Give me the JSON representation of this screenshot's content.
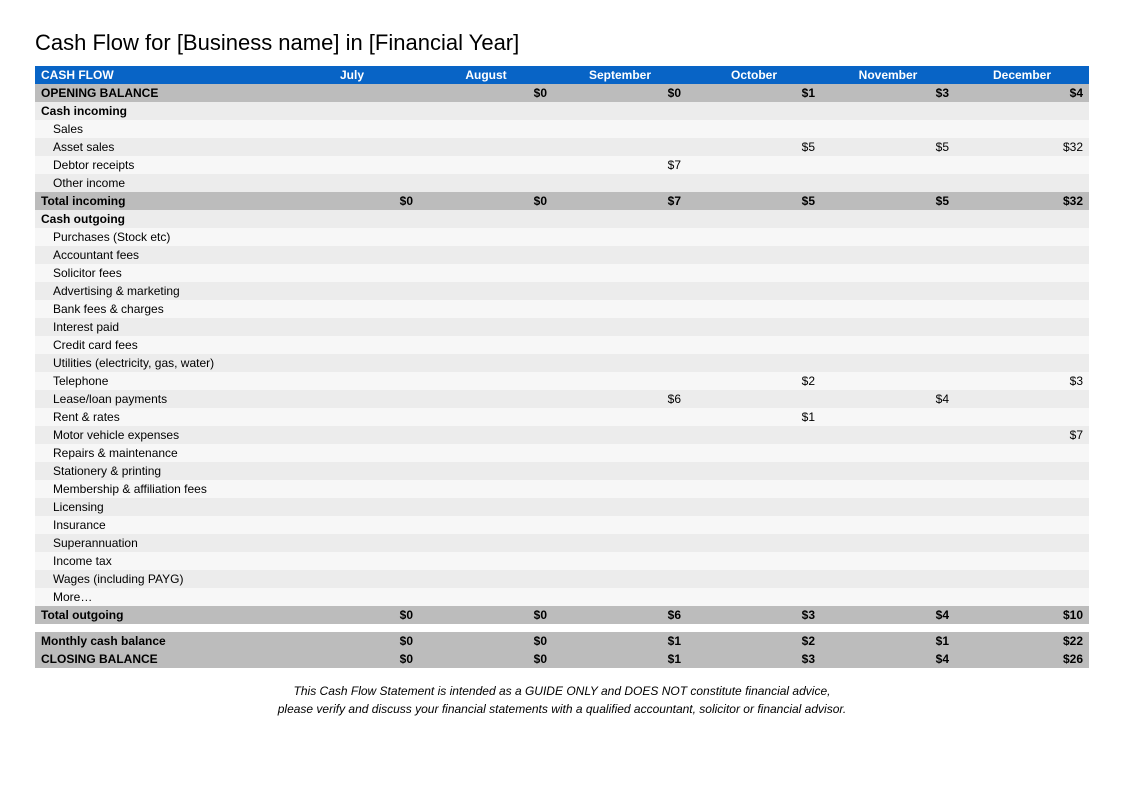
{
  "title": "Cash Flow for [Business name] in [Financial Year]",
  "header": {
    "label": "CASH FLOW",
    "months": [
      "July",
      "August",
      "September",
      "October",
      "November",
      "December"
    ]
  },
  "opening": {
    "label": "OPENING BALANCE",
    "values": [
      "",
      "$0",
      "$0",
      "$1",
      "$3",
      "$4"
    ]
  },
  "incoming": {
    "heading": "Cash incoming",
    "rows": [
      {
        "label": "Sales",
        "values": [
          "",
          "",
          "",
          "",
          "",
          ""
        ]
      },
      {
        "label": "Asset sales",
        "values": [
          "",
          "",
          "",
          "$5",
          "$5",
          "$32"
        ]
      },
      {
        "label": "Debtor receipts",
        "values": [
          "",
          "",
          "$7",
          "",
          "",
          ""
        ]
      },
      {
        "label": "Other income",
        "values": [
          "",
          "",
          "",
          "",
          "",
          ""
        ]
      }
    ],
    "total": {
      "label": "Total incoming",
      "values": [
        "$0",
        "$0",
        "$7",
        "$5",
        "$5",
        "$32"
      ]
    }
  },
  "outgoing": {
    "heading": "Cash outgoing",
    "rows": [
      {
        "label": "Purchases (Stock etc)",
        "values": [
          "",
          "",
          "",
          "",
          "",
          ""
        ]
      },
      {
        "label": "Accountant fees",
        "values": [
          "",
          "",
          "",
          "",
          "",
          ""
        ]
      },
      {
        "label": "Solicitor fees",
        "values": [
          "",
          "",
          "",
          "",
          "",
          ""
        ]
      },
      {
        "label": "Advertising & marketing",
        "values": [
          "",
          "",
          "",
          "",
          "",
          ""
        ]
      },
      {
        "label": "Bank fees & charges",
        "values": [
          "",
          "",
          "",
          "",
          "",
          ""
        ]
      },
      {
        "label": "Interest paid",
        "values": [
          "",
          "",
          "",
          "",
          "",
          ""
        ]
      },
      {
        "label": "Credit card fees",
        "values": [
          "",
          "",
          "",
          "",
          "",
          ""
        ]
      },
      {
        "label": "Utilities (electricity, gas, water)",
        "values": [
          "",
          "",
          "",
          "",
          "",
          ""
        ]
      },
      {
        "label": "Telephone",
        "values": [
          "",
          "",
          "",
          "$2",
          "",
          "$3"
        ]
      },
      {
        "label": "Lease/loan payments",
        "values": [
          "",
          "",
          "$6",
          "",
          "$4",
          ""
        ]
      },
      {
        "label": "Rent & rates",
        "values": [
          "",
          "",
          "",
          "$1",
          "",
          ""
        ]
      },
      {
        "label": "Motor vehicle expenses",
        "values": [
          "",
          "",
          "",
          "",
          "",
          "$7"
        ]
      },
      {
        "label": "Repairs & maintenance",
        "values": [
          "",
          "",
          "",
          "",
          "",
          ""
        ]
      },
      {
        "label": "Stationery & printing",
        "values": [
          "",
          "",
          "",
          "",
          "",
          ""
        ]
      },
      {
        "label": "Membership & affiliation fees",
        "values": [
          "",
          "",
          "",
          "",
          "",
          ""
        ]
      },
      {
        "label": "Licensing",
        "values": [
          "",
          "",
          "",
          "",
          "",
          ""
        ]
      },
      {
        "label": "Insurance",
        "values": [
          "",
          "",
          "",
          "",
          "",
          ""
        ]
      },
      {
        "label": "Superannuation",
        "values": [
          "",
          "",
          "",
          "",
          "",
          ""
        ]
      },
      {
        "label": "Income tax",
        "values": [
          "",
          "",
          "",
          "",
          "",
          ""
        ]
      },
      {
        "label": "Wages (including PAYG)",
        "values": [
          "",
          "",
          "",
          "",
          "",
          ""
        ]
      },
      {
        "label": "More…",
        "values": [
          "",
          "",
          "",
          "",
          "",
          ""
        ]
      }
    ],
    "total": {
      "label": "Total outgoing",
      "values": [
        "$0",
        "$0",
        "$6",
        "$3",
        "$4",
        "$10"
      ]
    }
  },
  "monthly": {
    "label": "Monthly cash balance",
    "values": [
      "$0",
      "$0",
      "$1",
      "$2",
      "$1",
      "$22"
    ]
  },
  "closing": {
    "label": "CLOSING BALANCE",
    "values": [
      "$0",
      "$0",
      "$1",
      "$3",
      "$4",
      "$26"
    ]
  },
  "footer": {
    "line1": "This Cash Flow Statement is intended as a GUIDE ONLY and DOES NOT constitute financial advice,",
    "line2": "please verify and discuss your financial statements with a qualified accountant, solicitor or financial advisor."
  },
  "style": {
    "header_bg": "#0864c6",
    "header_fg": "#ffffff",
    "row_odd_bg": "#ececec",
    "row_even_bg": "#f7f7f7",
    "dark_bg": "#bcbcbc",
    "page_bg": "#ffffff",
    "font_family": "Verdana, Arial, sans-serif",
    "title_fontsize": 22,
    "cell_fontsize": 12
  }
}
